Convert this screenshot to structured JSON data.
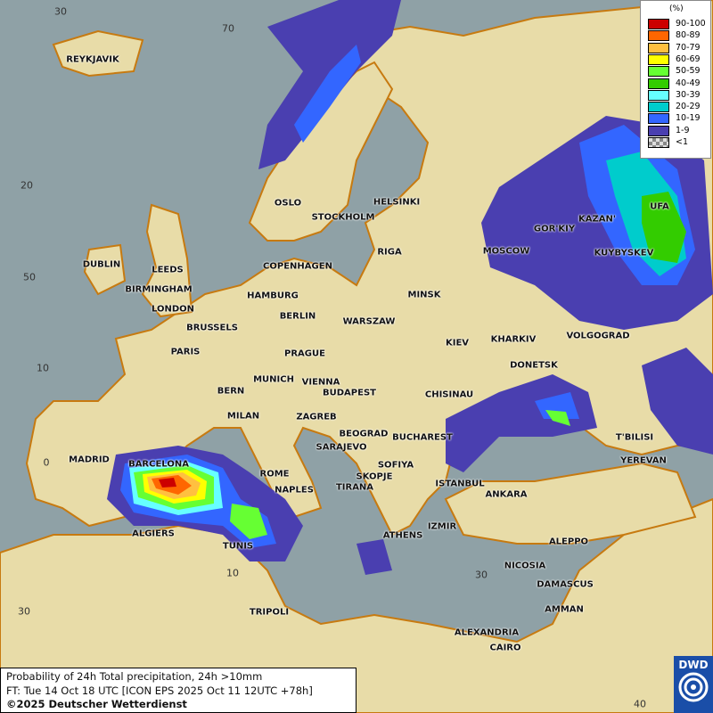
{
  "title": "Probability of 24h Total precipitation, 24h >10mm",
  "forecast_time": "FT: Tue 14 Oct 18 UTC [ICON EPS 2025 Oct 11 12UTC +78h]",
  "copyright": "©2025 Deutscher Wetterdienst",
  "logo": "DWD",
  "legend": {
    "unit": "(%)",
    "classes": [
      {
        "label": "90-100",
        "color": "#cc0000"
      },
      {
        "label": "80-89",
        "color": "#ff6600"
      },
      {
        "label": "70-79",
        "color": "#ffc040"
      },
      {
        "label": "60-69",
        "color": "#ffff00"
      },
      {
        "label": "50-59",
        "color": "#66ff33"
      },
      {
        "label": "40-49",
        "color": "#33cc00"
      },
      {
        "label": "30-39",
        "color": "#66ffff"
      },
      {
        "label": "20-29",
        "color": "#00cccc"
      },
      {
        "label": "10-19",
        "color": "#3366ff"
      },
      {
        "label": "1-9",
        "color": "#4a3fb0"
      },
      {
        "label": "<1",
        "color": "#bbbbbb"
      }
    ]
  },
  "grid_labels": [
    "30",
    "70",
    "20",
    "50",
    "10",
    "0",
    "10",
    "30",
    "30",
    "40"
  ],
  "cities": [
    "REYKJAVIK",
    "OSLO",
    "STOCKHOLM",
    "HELSINKI",
    "DUBLIN",
    "LEEDS",
    "BIRMINGHAM",
    "LONDON",
    "COPENHAGEN",
    "RIGA",
    "HAMBURG",
    "BERLIN",
    "MINSK",
    "WARSZAW",
    "BRUSSELS",
    "PARIS",
    "PRAGUE",
    "KIEV",
    "KHARKIV",
    "MOSCOW",
    "GOR'KIY",
    "KAZAN'",
    "UFA",
    "KUYBYSKEV",
    "VOLGOGRAD",
    "DONETSK",
    "MUNICH",
    "VIENNA",
    "BERN",
    "BUDAPEST",
    "CHISINAU",
    "MILAN",
    "ZAGREB",
    "BEOGRAD",
    "BUCHAREST",
    "T'BILISI",
    "MADRID",
    "BARCELONA",
    "SARAJEVO",
    "SOFIYA",
    "YEREVAN",
    "ROME",
    "NAPLES",
    "SKOPJE",
    "TIRANA",
    "ISTANBUL",
    "ANKARA",
    "ALGIERS",
    "IZMIR",
    "ATHENS",
    "TUNIS",
    "ALEPPO",
    "NICOSIA",
    "DAMASCUS",
    "TRIPOLI",
    "AMMAN",
    "ALEXANDRIA",
    "CAIRO"
  ]
}
